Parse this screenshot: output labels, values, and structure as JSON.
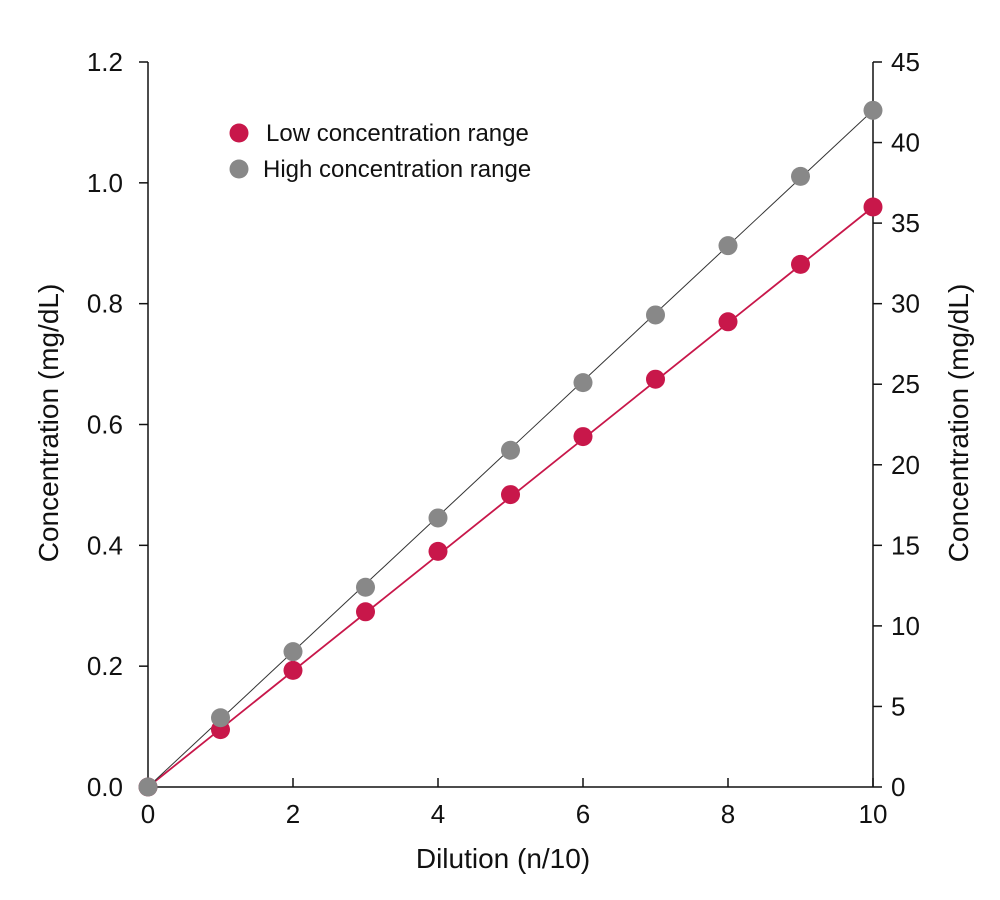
{
  "chart_data": {
    "type": "scatter",
    "xlabel": "Dilution (n/10)",
    "ylabel_left": "Concentration (mg/dL)",
    "ylabel_right": "Concentration (mg/dL)",
    "xlim": [
      0,
      10
    ],
    "ylim_left": [
      0,
      1.2
    ],
    "ylim_right": [
      0,
      45
    ],
    "xticks": [
      "0",
      "2",
      "4",
      "6",
      "8",
      "10"
    ],
    "yticks_left": [
      "0.0",
      "0.2",
      "0.4",
      "0.6",
      "0.8",
      "1.0",
      "1.2"
    ],
    "yticks_right": [
      "0",
      "5",
      "10",
      "15",
      "20",
      "25",
      "30",
      "35",
      "40",
      "45"
    ],
    "grid": false,
    "legend_position": "top-left",
    "series": [
      {
        "name": "Low concentration range",
        "axis": "left",
        "color": "#c8174a",
        "x": [
          0,
          1,
          2,
          3,
          4,
          5,
          6,
          7,
          8,
          9,
          10
        ],
        "y": [
          0.0,
          0.095,
          0.193,
          0.29,
          0.39,
          0.484,
          0.58,
          0.675,
          0.77,
          0.865,
          0.96
        ]
      },
      {
        "name": "High concentration range",
        "axis": "right",
        "color": "#888888",
        "x": [
          0,
          1,
          2,
          3,
          4,
          5,
          6,
          7,
          8,
          9,
          10
        ],
        "y": [
          0,
          4.3,
          8.4,
          12.4,
          16.7,
          20.9,
          25.1,
          29.3,
          33.6,
          37.9,
          42.0
        ]
      }
    ]
  }
}
